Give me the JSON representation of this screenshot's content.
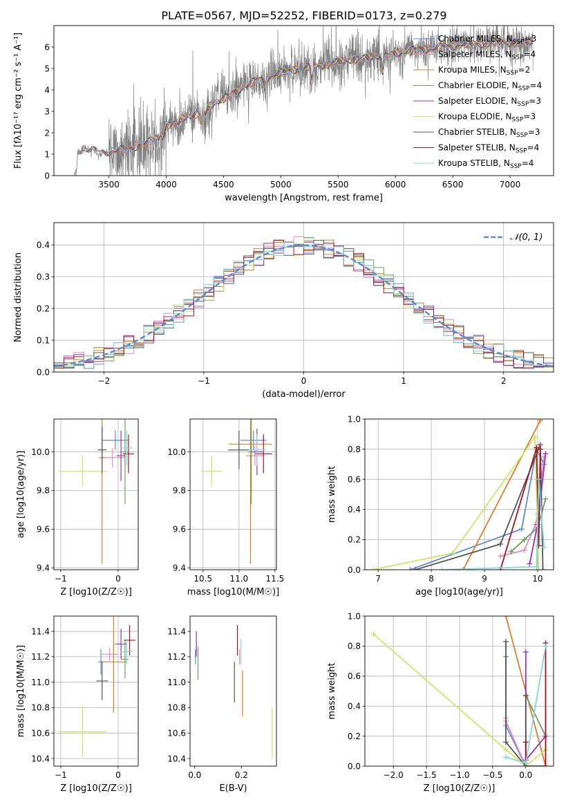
{
  "title": "PLATE=0567, MJD=52252, FIBERID=0173, z=0.279",
  "colors": {
    "Chabrier MILES": "#5b8bd6",
    "Salpeter MILES": "#e889c0",
    "Kroupa MILES": "#e07b2a",
    "Chabrier ELODIE": "#6f9a5e",
    "Salpeter ELODIE": "#9b2fb5",
    "Kroupa ELODIE": "#c8e860",
    "Chabrier STELIB": "#555555",
    "Salpeter STELIB": "#a8101c",
    "Kroupa STELIB": "#80d8e0",
    "data": "#7f7f7f",
    "normal": "#5b8bd6"
  },
  "chart_data": [
    {
      "id": "spectrum",
      "type": "line",
      "xlabel": "wavelength [Angstrom, rest frame]",
      "ylabel": "Flux [fλ10⁻¹⁷ erg cm⁻² s⁻¹ A⁻¹]",
      "xlim": [
        3020,
        7380
      ],
      "ylim": [
        0,
        7
      ],
      "xticks": [
        "3500",
        "4000",
        "4500",
        "5000",
        "5500",
        "6000",
        "6500",
        "7000"
      ],
      "yticks": [
        "0",
        "1",
        "2",
        "3",
        "4",
        "5",
        "6"
      ],
      "legend": [
        "Chabrier MILES, N_SSP=3",
        "Salpeter MILES, N_SSP=4",
        "Kroupa MILES, N_SSP=2",
        "Chabrier ELODIE, N_SSP=4",
        "Salpeter ELODIE, N_SSP=3",
        "Kroupa ELODIE, N_SSP=3",
        "Chabrier STELIB, N_SSP=3",
        "Salpeter STELIB, N_SSP=4",
        "Kroupa STELIB, N_SSP=4"
      ],
      "legend_position": "upper right",
      "continuum": {
        "x": [
          3200,
          3215,
          3230,
          3400,
          3520,
          3600,
          3700,
          3800,
          3900,
          4000,
          4100,
          4200,
          4300,
          4400,
          4500,
          4600,
          4700,
          4800,
          4900,
          5000,
          5100,
          5200,
          5300,
          5400,
          5500,
          5600,
          5700,
          5800,
          5900,
          6000,
          6100,
          6200,
          6300,
          6400,
          6500,
          6600,
          6700,
          6800,
          6900,
          7000,
          7100,
          7200
        ],
        "y": [
          0,
          0.2,
          1.2,
          1.15,
          1.1,
          1.2,
          1.3,
          1.45,
          1.7,
          2.3,
          2.55,
          2.8,
          2.9,
          3.3,
          3.6,
          3.9,
          4.2,
          4.5,
          4.6,
          4.8,
          4.95,
          5.0,
          5.1,
          5.2,
          5.3,
          5.4,
          5.45,
          5.55,
          5.6,
          5.7,
          5.8,
          5.9,
          5.9,
          6.0,
          6.05,
          6.1,
          6.15,
          6.15,
          6.2,
          6.2,
          6.2,
          6.25
        ]
      }
    },
    {
      "id": "residuals",
      "type": "step-histogram",
      "xlabel": "(data-model)/error",
      "ylabel": "Normed distribution",
      "xlim": [
        -2.5,
        2.5
      ],
      "ylim": [
        0,
        0.47
      ],
      "xticks": [
        "−2",
        "−1",
        "0",
        "1",
        "2"
      ],
      "yticks": [
        "0.0",
        "0.1",
        "0.2",
        "0.3",
        "0.4"
      ],
      "grid": true,
      "legend": [
        "𝒩(0, 1)"
      ],
      "legend_position": "upper right",
      "bin_width": 0.1
    },
    {
      "id": "age-vs-Z",
      "type": "errorbar",
      "xlabel": "Z [log10(Z/Z☉)]",
      "ylabel": "age [log10(age/yr)]",
      "xlim": [
        -1.12,
        0.35
      ],
      "ylim": [
        9.39,
        10.17
      ],
      "xticks": [
        "−1",
        "0"
      ],
      "yticks": [
        "9.4",
        "9.6",
        "9.8",
        "10.0"
      ],
      "grid": true,
      "points": [
        {
          "model": "Chabrier MILES",
          "x": -0.05,
          "xerr": 0.22,
          "y": 10.06,
          "yerr": 0.05
        },
        {
          "model": "Salpeter MILES",
          "x": -0.1,
          "xerr": 0.22,
          "y": 9.97,
          "yerr": 0.05
        },
        {
          "model": "Kroupa MILES",
          "x": -0.28,
          "xerr": 0.05,
          "y": 9.97,
          "yerr": 0.55
        },
        {
          "model": "Chabrier ELODIE",
          "x": 0.12,
          "xerr": 0.06,
          "y": 10.0,
          "yerr": 0.27
        },
        {
          "model": "Salpeter ELODIE",
          "x": 0.05,
          "xerr": 0.08,
          "y": 9.98,
          "yerr": 0.13
        },
        {
          "model": "Kroupa ELODIE",
          "x": -0.62,
          "xerr": 0.42,
          "y": 9.9,
          "yerr": 0.08
        },
        {
          "model": "Chabrier STELIB",
          "x": -0.28,
          "xerr": 0.08,
          "y": 10.01,
          "yerr": 0.12
        },
        {
          "model": "Salpeter STELIB",
          "x": 0.18,
          "xerr": 0.1,
          "y": 9.99,
          "yerr": 0.1
        },
        {
          "model": "Kroupa STELIB",
          "x": 0.15,
          "xerr": 0.1,
          "y": 10.02,
          "yerr": 0.09
        }
      ]
    },
    {
      "id": "age-vs-mass",
      "type": "errorbar",
      "xlabel": "mass [log10(M/M☉)]",
      "ylabel": "",
      "xlim": [
        10.32,
        11.52
      ],
      "ylim": [
        9.39,
        10.17
      ],
      "xticks": [
        "10.5",
        "11.0",
        "11.5"
      ],
      "yticks": [
        "9.4",
        "9.6",
        "9.8",
        "10.0"
      ],
      "grid": true,
      "points": [
        {
          "model": "Chabrier MILES",
          "x": 11.2,
          "xerr": 0.18,
          "y": 10.06,
          "yerr": 0.05
        },
        {
          "model": "Salpeter MILES",
          "x": 11.22,
          "xerr": 0.12,
          "y": 9.98,
          "yerr": 0.05
        },
        {
          "model": "Kroupa MILES",
          "x": 11.16,
          "xerr": 0.3,
          "y": 10.04,
          "yerr": 0.62
        },
        {
          "model": "Chabrier ELODIE",
          "x": 11.17,
          "xerr": 0.05,
          "y": 10.0,
          "yerr": 0.27
        },
        {
          "model": "Salpeter ELODIE",
          "x": 11.25,
          "xerr": 0.08,
          "y": 10.0,
          "yerr": 0.12
        },
        {
          "model": "Kroupa ELODIE",
          "x": 10.62,
          "xerr": 0.15,
          "y": 9.9,
          "yerr": 0.08
        },
        {
          "model": "Chabrier STELIB",
          "x": 11.0,
          "xerr": 0.15,
          "y": 10.01,
          "yerr": 0.1
        },
        {
          "model": "Salpeter STELIB",
          "x": 11.34,
          "xerr": 0.12,
          "y": 9.99,
          "yerr": 0.1
        },
        {
          "model": "Kroupa STELIB",
          "x": 11.25,
          "xerr": 0.12,
          "y": 10.01,
          "yerr": 0.08
        }
      ]
    },
    {
      "id": "weight-vs-age",
      "type": "line",
      "xlabel": "age [log10(age/yr)]",
      "ylabel": "mass weight",
      "xlim": [
        6.75,
        10.3
      ],
      "ylim": [
        0,
        1
      ],
      "xticks": [
        "7",
        "8",
        "9",
        "10"
      ],
      "yticks": [
        "0.0",
        "0.2",
        "0.4",
        "0.6",
        "0.8",
        "1.0"
      ],
      "grid": true,
      "series": [
        {
          "model": "Chabrier MILES",
          "x": [
            7.6,
            9.7,
            9.98,
            10.12
          ],
          "y": [
            0.0,
            0.27,
            0.8,
            0.7
          ]
        },
        {
          "model": "Salpeter MILES",
          "x": [
            9.3,
            9.75,
            9.96,
            10.0,
            10.12
          ],
          "y": [
            0.09,
            0.13,
            0.3,
            0.37,
            0.75
          ]
        },
        {
          "model": "Kroupa MILES",
          "x": [
            8.6,
            10.05
          ],
          "y": [
            0.0,
            0.99
          ]
        },
        {
          "model": "Chabrier ELODIE",
          "x": [
            9.5,
            9.75,
            10.0,
            10.15
          ],
          "y": [
            0.12,
            0.2,
            0.28,
            0.47
          ]
        },
        {
          "model": "Salpeter ELODIE",
          "x": [
            9.85,
            10.0,
            10.15
          ],
          "y": [
            0.04,
            0.3,
            0.77
          ]
        },
        {
          "model": "Kroupa ELODIE",
          "x": [
            6.9,
            8.4,
            9.95,
            10.02
          ],
          "y": [
            0.0,
            0.11,
            0.88,
            0.0
          ]
        },
        {
          "model": "Chabrier STELIB",
          "x": [
            7.7,
            9.3,
            10.05,
            10.1
          ],
          "y": [
            0.0,
            0.17,
            0.83,
            0.0
          ]
        },
        {
          "model": "Salpeter STELIB",
          "x": [
            9.3,
            9.98,
            10.02,
            10.05
          ],
          "y": [
            0.0,
            0.81,
            0.16,
            0.8
          ]
        },
        {
          "model": "Kroupa STELIB",
          "x": [
            8.2,
            9.98,
            10.02,
            10.12
          ],
          "y": [
            0.0,
            0.02,
            0.6,
            0.15
          ]
        }
      ]
    },
    {
      "id": "mass-vs-Z",
      "type": "errorbar",
      "xlabel": "Z [log10(Z/Z☉)]",
      "ylabel": "mass [log10(M/M☉)]",
      "xlim": [
        -1.12,
        0.35
      ],
      "ylim": [
        10.34,
        11.52
      ],
      "xticks": [
        "−1",
        "0"
      ],
      "yticks": [
        "10.4",
        "10.6",
        "10.8",
        "11.0",
        "11.2",
        "11.4"
      ],
      "grid": true,
      "points": [
        {
          "model": "Chabrier MILES",
          "x": -0.3,
          "xerr": 0.05,
          "y": 11.16,
          "yerr": 0.1
        },
        {
          "model": "Salpeter MILES",
          "x": -0.15,
          "xerr": 0.15,
          "y": 11.22,
          "yerr": 0.05
        },
        {
          "model": "Kroupa MILES",
          "x": -0.08,
          "xerr": 0.22,
          "y": 11.16,
          "yerr": 0.4
        },
        {
          "model": "Chabrier ELODIE",
          "x": 0.12,
          "xerr": 0.06,
          "y": 11.18,
          "yerr": 0.15
        },
        {
          "model": "Salpeter ELODIE",
          "x": 0.05,
          "xerr": 0.1,
          "y": 11.3,
          "yerr": 0.12
        },
        {
          "model": "Kroupa ELODIE",
          "x": -0.62,
          "xerr": 0.42,
          "y": 10.61,
          "yerr": 0.2
        },
        {
          "model": "Chabrier STELIB",
          "x": -0.28,
          "xerr": 0.1,
          "y": 11.01,
          "yerr": 0.15
        },
        {
          "model": "Salpeter STELIB",
          "x": 0.2,
          "xerr": 0.1,
          "y": 11.33,
          "yerr": 0.12
        },
        {
          "model": "Kroupa STELIB",
          "x": 0.15,
          "xerr": 0.1,
          "y": 11.24,
          "yerr": 0.1
        }
      ]
    },
    {
      "id": "mass-vs-EBV",
      "type": "errorbar",
      "xlabel": "E(B-V)",
      "ylabel": "",
      "xlim": [
        -0.02,
        0.35
      ],
      "ylim": [
        10.34,
        11.52
      ],
      "xticks": [
        "0.0",
        "0.2"
      ],
      "yticks": [
        "10.4",
        "10.6",
        "10.8",
        "11.0",
        "11.2",
        "11.4"
      ],
      "points": [
        {
          "model": "Chabrier MILES",
          "x": 0.003,
          "xerr": 0,
          "y": 11.2,
          "yerr": 0.06
        },
        {
          "model": "Salpeter MILES",
          "x": 0.192,
          "xerr": 0,
          "y": 11.2,
          "yerr": 0.06
        },
        {
          "model": "Kroupa MILES",
          "x": 0.205,
          "xerr": 0,
          "y": 10.91,
          "yerr": 0.18
        },
        {
          "model": "Chabrier ELODIE",
          "x": 0.014,
          "xerr": 0,
          "y": 11.15,
          "yerr": 0.13
        },
        {
          "model": "Salpeter ELODIE",
          "x": 0.007,
          "xerr": 0,
          "y": 11.3,
          "yerr": 0.1
        },
        {
          "model": "Kroupa ELODIE",
          "x": 0.332,
          "xerr": 0,
          "y": 10.6,
          "yerr": 0.2
        },
        {
          "model": "Chabrier STELIB",
          "x": 0.17,
          "xerr": 0,
          "y": 11.0,
          "yerr": 0.16
        },
        {
          "model": "Salpeter STELIB",
          "x": 0.183,
          "xerr": 0,
          "y": 11.33,
          "yerr": 0.12
        },
        {
          "model": "Kroupa STELIB",
          "x": 0.198,
          "xerr": 0,
          "y": 11.24,
          "yerr": 0.1
        }
      ]
    },
    {
      "id": "weight-vs-Z",
      "type": "line",
      "xlabel": "Z [log10(Z/Z☉)]",
      "ylabel": "mass weight",
      "xlim": [
        -2.43,
        0.42
      ],
      "ylim": [
        0,
        1
      ],
      "xticks": [
        "−2.0",
        "−1.5",
        "−1.0",
        "−0.5",
        "0.0"
      ],
      "yticks": [
        "0.0",
        "0.2",
        "0.4",
        "0.6",
        "0.8",
        "1.0"
      ],
      "grid": true,
      "series": [
        {
          "model": "Chabrier MILES",
          "x": [
            -0.3,
            -0.3,
            0.0
          ],
          "y": [
            0.73,
            0.27,
            0.0
          ]
        },
        {
          "model": "Salpeter MILES",
          "x": [
            -0.3,
            -0.3,
            0.0
          ],
          "y": [
            0.32,
            0.3,
            0.0
          ]
        },
        {
          "model": "Kroupa MILES",
          "x": [
            -0.3,
            0.3
          ],
          "y": [
            1.0,
            0.0
          ]
        },
        {
          "model": "Chabrier ELODIE",
          "x": [
            0.0,
            0.3,
            0.3
          ],
          "y": [
            0.47,
            0.2,
            0.11
          ]
        },
        {
          "model": "Salpeter ELODIE",
          "x": [
            0.0,
            0.0,
            0.3
          ],
          "y": [
            0.76,
            0.04,
            0.2
          ]
        },
        {
          "model": "Kroupa ELODIE",
          "x": [
            -2.3,
            -0.3,
            0.0,
            0.3
          ],
          "y": [
            0.88,
            0.11,
            0.0,
            0.11
          ]
        },
        {
          "model": "Chabrier STELIB",
          "x": [
            -0.3,
            -0.3,
            0.0,
            0.0
          ],
          "y": [
            0.83,
            0.16,
            0.0,
            0.47
          ]
        },
        {
          "model": "Salpeter STELIB",
          "x": [
            0.0,
            0.0,
            0.3,
            0.3
          ],
          "y": [
            0.16,
            0.0,
            0.0,
            0.82
          ]
        },
        {
          "model": "Kroupa STELIB",
          "x": [
            -0.3,
            0.0,
            0.3
          ],
          "y": [
            0.06,
            0.02,
            0.8
          ]
        }
      ]
    }
  ]
}
